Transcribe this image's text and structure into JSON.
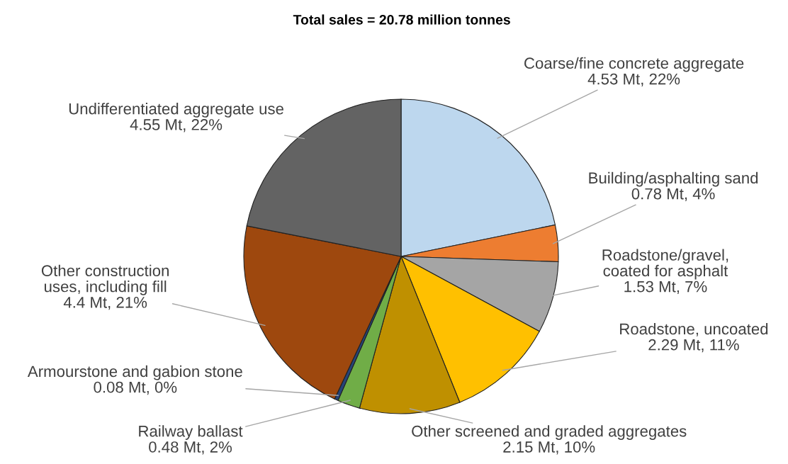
{
  "chart_data": {
    "type": "pie",
    "title": "Total sales = 20.78 million tonnes",
    "categories": [
      "Coarse/fine concrete aggregate",
      "Building/asphalting sand",
      "Roadstone/gravel,\ncoated for asphalt",
      "Roadstone, uncoated",
      "Other screened and graded aggregates",
      "Railway ballast",
      "Armourstone and gabion stone",
      "Other construction\nuses, including fill",
      "Undifferentiated aggregate use"
    ],
    "values": [
      4.53,
      0.78,
      1.53,
      2.29,
      2.15,
      0.48,
      0.08,
      4.4,
      4.55
    ],
    "value_labels": [
      "4.53 Mt, 22%",
      "0.78 Mt, 4%",
      "1.53 Mt, 7%",
      "2.29 Mt, 11%",
      "2.15 Mt, 10%",
      "0.48 Mt, 2%",
      "0.08 Mt, 0%",
      "4.4 Mt, 21%",
      "4.55 Mt, 22%"
    ],
    "colors": [
      "#bdd7ee",
      "#ed7d31",
      "#a5a5a5",
      "#ffc000",
      "#bf9000",
      "#70ad47",
      "#264478",
      "#9e480e",
      "#636363"
    ]
  }
}
